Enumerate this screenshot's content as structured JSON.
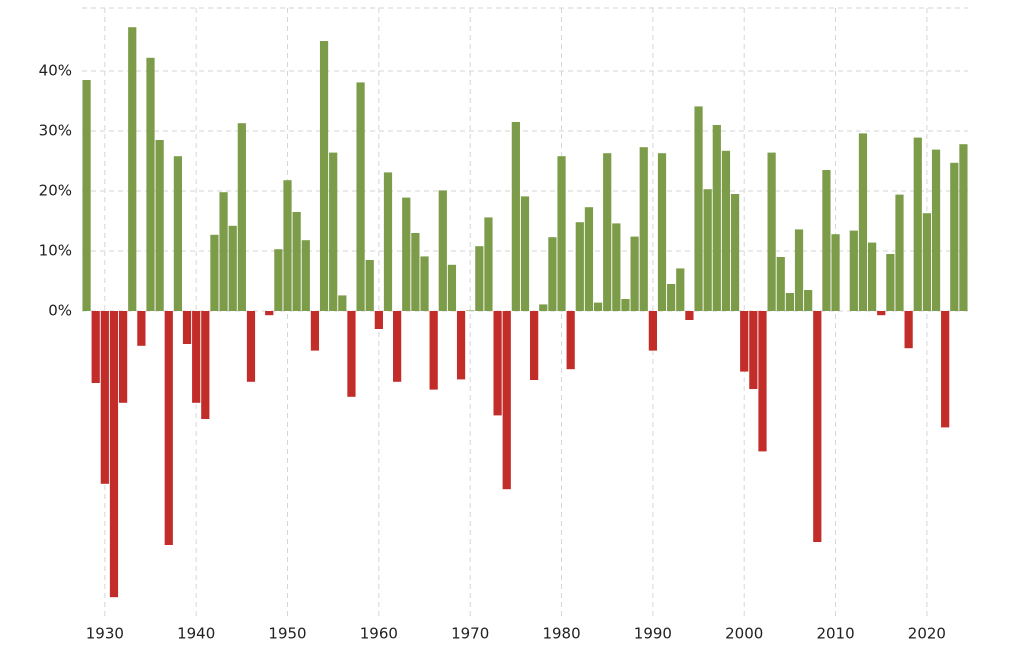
{
  "chart_data": {
    "type": "bar",
    "x": [
      1928,
      1929,
      1930,
      1931,
      1932,
      1933,
      1934,
      1935,
      1936,
      1937,
      1938,
      1939,
      1940,
      1941,
      1942,
      1943,
      1944,
      1945,
      1946,
      1947,
      1948,
      1949,
      1950,
      1951,
      1952,
      1953,
      1954,
      1955,
      1956,
      1957,
      1958,
      1959,
      1960,
      1961,
      1962,
      1963,
      1964,
      1965,
      1966,
      1967,
      1968,
      1969,
      1970,
      1971,
      1972,
      1973,
      1974,
      1975,
      1976,
      1977,
      1978,
      1979,
      1980,
      1981,
      1982,
      1983,
      1984,
      1985,
      1986,
      1987,
      1988,
      1989,
      1990,
      1991,
      1992,
      1993,
      1994,
      1995,
      1996,
      1997,
      1998,
      1999,
      2000,
      2001,
      2002,
      2003,
      2004,
      2005,
      2006,
      2007,
      2008,
      2009,
      2010,
      2011,
      2012,
      2013,
      2014,
      2015,
      2016,
      2017,
      2018,
      2019,
      2020,
      2021,
      2022,
      2023,
      2024
    ],
    "values": [
      38.5,
      -12,
      -28.8,
      -47.7,
      -15.3,
      47.3,
      -5.8,
      42.2,
      28.5,
      -39,
      25.8,
      -5.5,
      -15.3,
      -18,
      12.7,
      19.8,
      14.2,
      31.3,
      -11.8,
      0,
      -0.7,
      10.3,
      21.8,
      16.5,
      11.8,
      -6.6,
      45,
      26.4,
      2.6,
      -14.3,
      38.1,
      8.5,
      -3,
      23.1,
      -11.8,
      18.9,
      13,
      9.1,
      -13.1,
      20.1,
      7.7,
      -11.4,
      0.1,
      10.8,
      15.6,
      -17.4,
      -29.7,
      31.5,
      19.1,
      -11.5,
      1.1,
      12.3,
      25.8,
      -9.7,
      14.8,
      17.3,
      1.4,
      26.3,
      14.6,
      2,
      12.4,
      27.3,
      -6.6,
      26.3,
      4.5,
      7.1,
      -1.5,
      34.1,
      20.3,
      31,
      26.7,
      19.5,
      -10.1,
      -13,
      -23.4,
      26.4,
      9,
      3,
      13.6,
      3.5,
      -38.5,
      23.5,
      12.8,
      0,
      13.4,
      29.6,
      11.4,
      -0.7,
      9.5,
      19.4,
      -6.2,
      28.9,
      16.3,
      26.9,
      -19.4,
      24.7,
      27.8
    ],
    "positive_color": "#7d9c4a",
    "negative_color": "#c22d2a",
    "xlim": [
      1927.5,
      2024.5
    ],
    "xticks": [
      1930,
      1940,
      1950,
      1960,
      1970,
      1980,
      1990,
      2000,
      2010,
      2020
    ],
    "ylim": [
      -51.5,
      51
    ],
    "yticks": [
      {
        "value": 0,
        "label": "0%"
      },
      {
        "value": 10,
        "label": "10%"
      },
      {
        "value": 20,
        "label": "20%"
      },
      {
        "value": 30,
        "label": "30%"
      },
      {
        "value": 40,
        "label": "40%"
      }
    ],
    "grid": true
  }
}
